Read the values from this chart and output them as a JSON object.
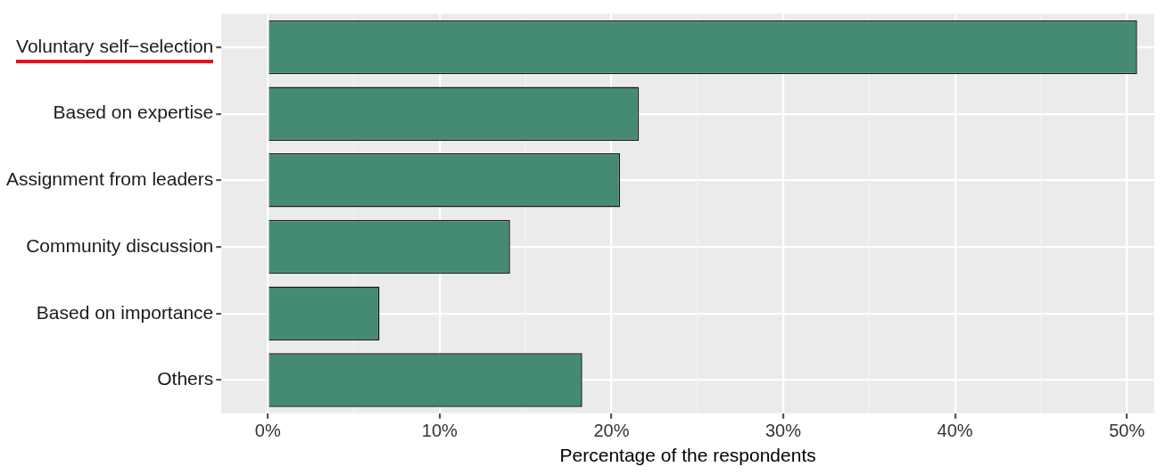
{
  "chart_data": {
    "type": "bar",
    "orientation": "horizontal",
    "xlabel": "Percentage of the respondents",
    "categories": [
      "Voluntary self−selection",
      "Based on expertise",
      "Assignment from leaders",
      "Community discussion",
      "Based on importance",
      "Others"
    ],
    "values": [
      50.6,
      21.6,
      20.5,
      14.1,
      6.5,
      18.3
    ],
    "color": "#458b73",
    "xlim": [
      -2.7,
      51.6
    ],
    "xticks": [
      {
        "value": 0,
        "label": "0%"
      },
      {
        "value": 10,
        "label": "10%"
      },
      {
        "value": 20,
        "label": "20%"
      },
      {
        "value": 30,
        "label": "30%"
      },
      {
        "value": 40,
        "label": "40%"
      },
      {
        "value": 50,
        "label": "50%"
      }
    ],
    "grid": true,
    "legend": false
  }
}
